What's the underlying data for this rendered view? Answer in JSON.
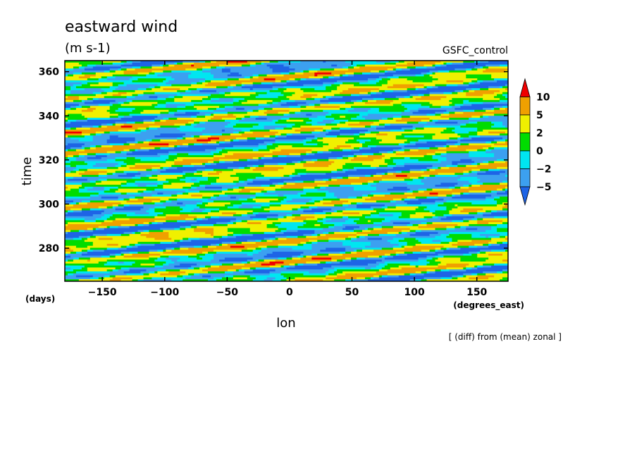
{
  "chart_data": {
    "type": "heatmap",
    "title": "eastward wind",
    "units": "(m s-1)",
    "source_label": "GSFC_control",
    "xlabel": "lon",
    "x_units": "(degrees_east)",
    "ylabel": "time",
    "y_units": "(days)",
    "footnote": "[ (diff) from (mean) zonal ]",
    "xlim": [
      -180,
      175
    ],
    "ylim": [
      265,
      365
    ],
    "x_ticks": [
      -150,
      -100,
      -50,
      0,
      50,
      100,
      150
    ],
    "y_ticks": [
      280,
      300,
      320,
      340,
      360
    ],
    "grid": false,
    "legend_placement": "right",
    "colorbar": {
      "levels": [
        "-5",
        "-2",
        "0",
        "2",
        "5",
        "10"
      ],
      "colors": [
        "#1e64e6",
        "#3ca0f0",
        "#00e6f0",
        "#00dc00",
        "#f0f000",
        "#f0a000",
        "#f00000"
      ]
    },
    "pattern": {
      "description_values_units": "m s-1",
      "dominant_phase_slope_lon_per_day": 18
    }
  }
}
